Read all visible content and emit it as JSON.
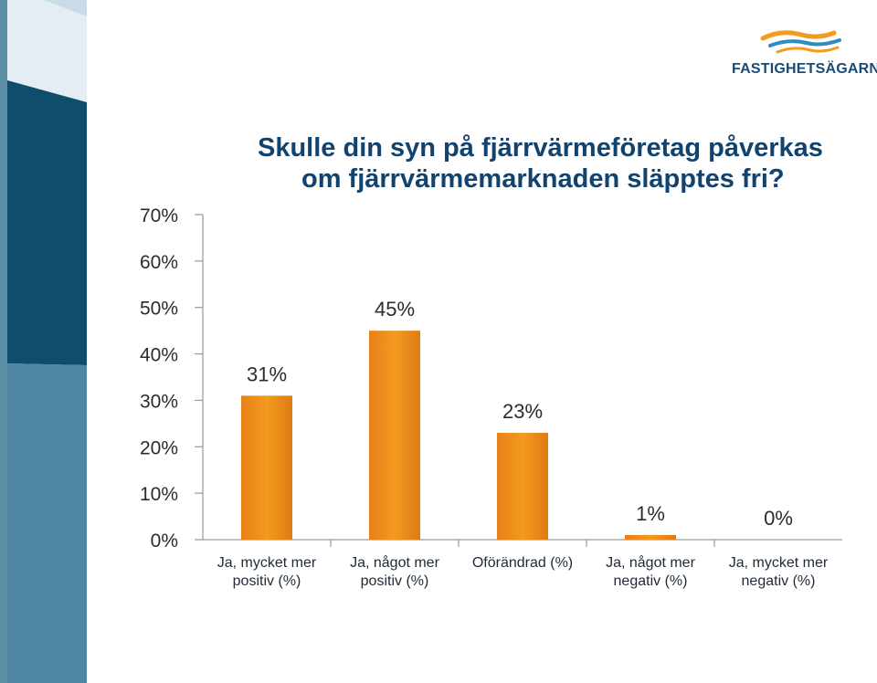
{
  "header": {
    "title_line1": "Skulle din syn på fjärrvärmeföretag påverkas",
    "title_line2": "om fjärrvärmemarknaden släpptes fri?"
  },
  "brand": {
    "logo_text": "FASTIGHETSÄGARNA",
    "logo_icon": "wave-stripes-icon",
    "colors": {
      "navy": "#1a4a78",
      "orange": "#f39a1f",
      "blue": "#2e8bc4"
    }
  },
  "chart_data": {
    "type": "bar",
    "categories": [
      [
        "Ja, mycket mer",
        "positiv (%)"
      ],
      [
        "Ja, något mer",
        "positiv (%)"
      ],
      [
        "Oförändrad (%)"
      ],
      [
        "Ja, något mer",
        "negativ (%)"
      ],
      [
        "Ja, mycket mer",
        "negativ (%)"
      ]
    ],
    "values": [
      31,
      45,
      23,
      1,
      0
    ],
    "data_labels": [
      "31%",
      "45%",
      "23%",
      "1%",
      "0%"
    ],
    "yticks": [
      0,
      10,
      20,
      30,
      40,
      50,
      60,
      70
    ],
    "ytick_labels": [
      "0%",
      "10%",
      "20%",
      "30%",
      "40%",
      "50%",
      "60%",
      "70%"
    ],
    "ylim": [
      0,
      70
    ],
    "bar_color": "#f39a1f",
    "grid": false,
    "legend": "none"
  }
}
